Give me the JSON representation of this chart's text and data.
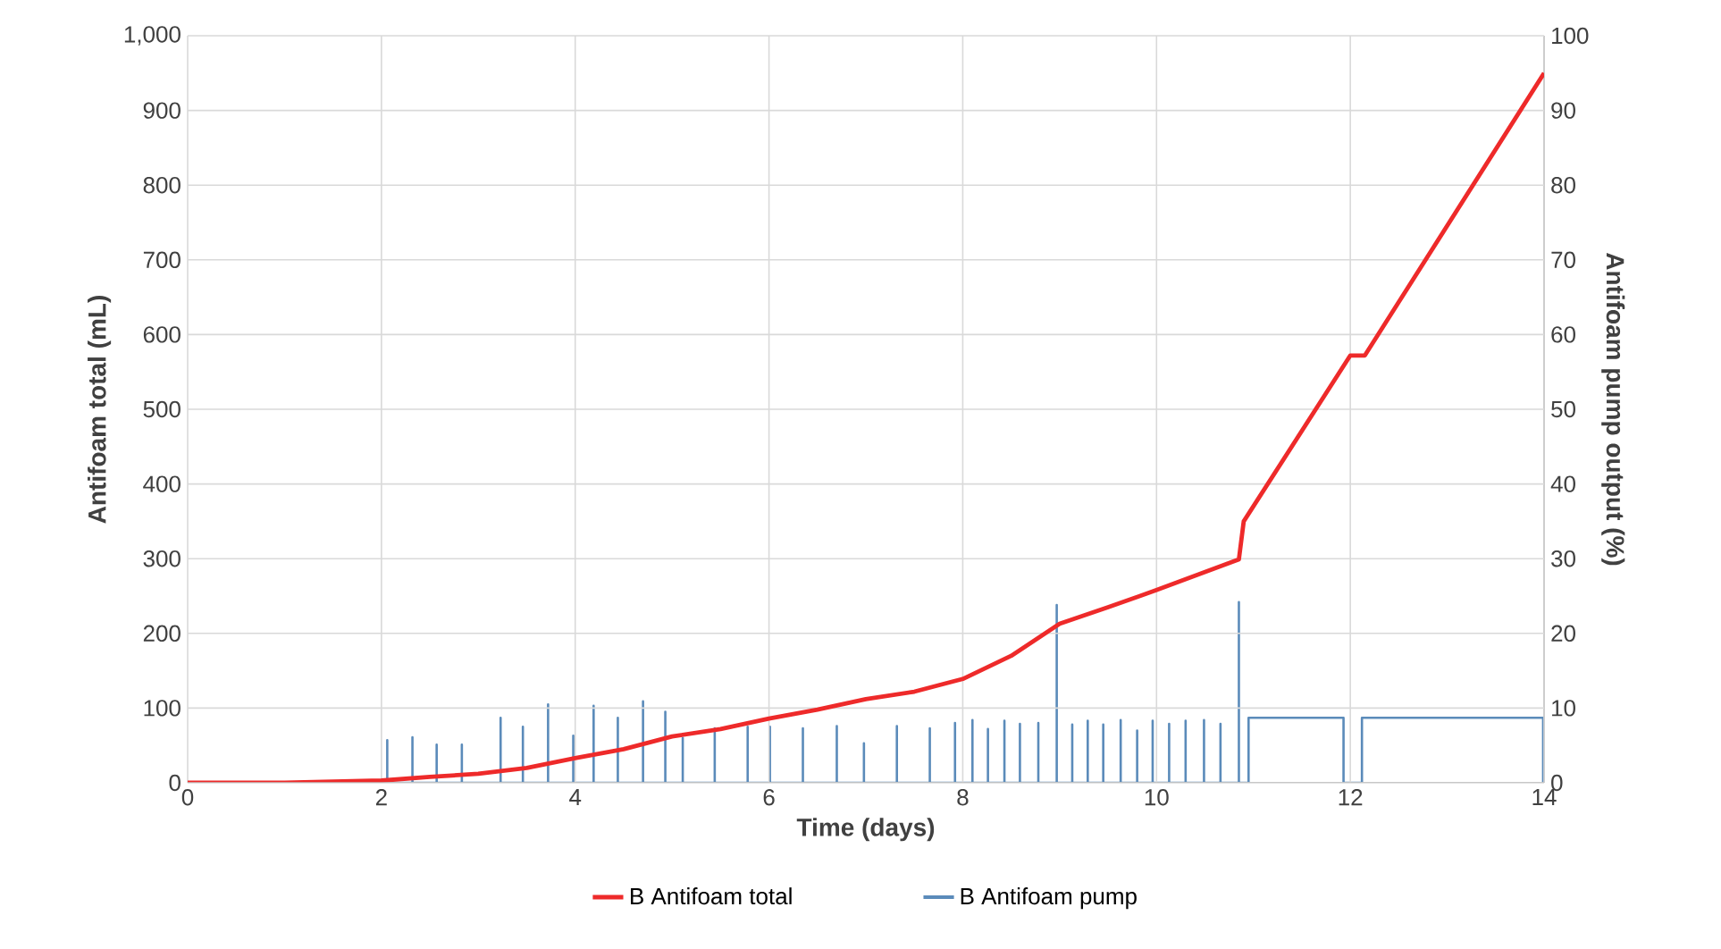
{
  "chart_data": {
    "type": "line",
    "xlabel": "Time (days)",
    "ylabel": "Antifoam total (mL)",
    "y2label": "Antifoam pump output (%)",
    "xlim": [
      0,
      14
    ],
    "xticks": [
      0,
      2,
      4,
      6,
      8,
      10,
      12,
      14
    ],
    "ylim": [
      0,
      1000
    ],
    "yticks": [
      0,
      100,
      200,
      300,
      400,
      500,
      600,
      700,
      800,
      900,
      {
        "value": 1000,
        "label": "1,000"
      }
    ],
    "y2lim": [
      0,
      100
    ],
    "y2ticks": [
      0,
      10,
      20,
      30,
      40,
      50,
      60,
      70,
      80,
      90,
      100
    ],
    "grid": true,
    "legend": "bottom",
    "series": [
      {
        "name": "B Antifoam total",
        "color": "#ee2a2a",
        "x": [
          0,
          1,
          2,
          2.5,
          3,
          3.5,
          4,
          4.5,
          5,
          5.5,
          6,
          6.5,
          7,
          7.5,
          8,
          8.5,
          9,
          9.5,
          10,
          10.85,
          10.9,
          12,
          12.15,
          14
        ],
        "values": [
          0,
          0,
          3,
          8,
          12,
          20,
          33,
          45,
          62,
          72,
          86,
          98,
          112,
          122,
          139,
          170,
          213,
          235,
          258,
          299,
          350,
          572,
          572,
          950
        ]
      },
      {
        "name": "B Antifoam pump",
        "color": "#5b8bba",
        "axis": "y2",
        "x": [
          0,
          2.06,
          2.06,
          2.06,
          2.32,
          2.32,
          2.32,
          2.57,
          2.57,
          2.57,
          2.83,
          2.83,
          2.83,
          3.23,
          3.23,
          3.23,
          3.46,
          3.46,
          3.46,
          3.72,
          3.72,
          3.72,
          3.98,
          3.98,
          3.98,
          4.19,
          4.19,
          4.19,
          4.44,
          4.44,
          4.44,
          4.7,
          4.7,
          4.7,
          4.93,
          4.93,
          4.93,
          5.11,
          5.11,
          5.11,
          5.44,
          5.44,
          5.44,
          5.78,
          5.78,
          5.78,
          6.01,
          6.01,
          6.01,
          6.35,
          6.35,
          6.35,
          6.7,
          6.7,
          6.7,
          6.98,
          6.98,
          6.98,
          7.32,
          7.32,
          7.32,
          7.66,
          7.66,
          7.66,
          7.92,
          7.92,
          7.92,
          8.1,
          8.1,
          8.1,
          8.26,
          8.26,
          8.26,
          8.43,
          8.43,
          8.43,
          8.59,
          8.59,
          8.59,
          8.78,
          8.78,
          8.78,
          8.97,
          8.97,
          8.97,
          9.13,
          9.13,
          9.13,
          9.29,
          9.29,
          9.29,
          9.45,
          9.45,
          9.45,
          9.63,
          9.63,
          9.63,
          9.8,
          9.8,
          9.8,
          9.96,
          9.96,
          9.96,
          10.13,
          10.13,
          10.13,
          10.3,
          10.3,
          10.3,
          10.49,
          10.49,
          10.49,
          10.66,
          10.66,
          10.66,
          10.85,
          10.85,
          10.85,
          10.95,
          10.95,
          11.93,
          11.93,
          12.12,
          12.12,
          13.99,
          13.99
        ],
        "values": [
          0,
          0,
          5.7,
          0,
          0,
          6.1,
          0,
          0,
          5.1,
          0,
          0,
          5.1,
          0,
          0,
          8.7,
          0,
          0,
          7.5,
          0,
          0,
          10.5,
          0,
          0,
          6.3,
          0,
          0,
          10.3,
          0,
          0,
          8.7,
          0,
          0,
          10.9,
          0,
          0,
          9.5,
          0,
          0,
          6,
          0,
          0,
          7.3,
          0,
          0,
          7.5,
          0,
          0,
          7.5,
          0,
          0,
          7.3,
          0,
          0,
          7.6,
          0,
          0,
          5.3,
          0,
          0,
          7.6,
          0,
          0,
          7.3,
          0,
          0,
          8,
          0,
          0,
          8.4,
          0,
          0,
          7.2,
          0,
          0,
          8.3,
          0,
          0,
          7.9,
          0,
          0,
          8,
          0,
          0,
          23.8,
          0,
          0,
          7.8,
          0,
          0,
          8.3,
          0,
          0,
          7.8,
          0,
          0,
          8.4,
          0,
          0,
          7,
          0,
          0,
          8.3,
          0,
          0,
          7.9,
          0,
          0,
          8.3,
          0,
          0,
          8.4,
          0,
          0,
          7.9,
          0,
          0,
          24.2,
          0,
          0,
          8.7,
          8.7,
          0,
          0,
          8.7,
          8.7,
          0
        ]
      }
    ]
  }
}
